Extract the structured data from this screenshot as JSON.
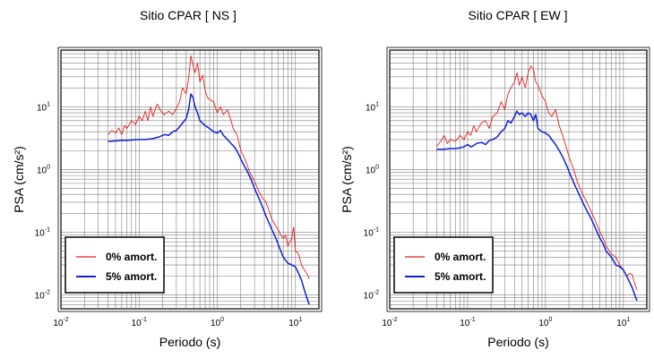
{
  "chart_data": [
    {
      "type": "line",
      "title": "Sitio CPAR [ NS ]",
      "xlabel": "Periodo (s)",
      "ylabel": "PSA (cm/s²)",
      "xscale": "log",
      "yscale": "log",
      "xlim": [
        0.01,
        20
      ],
      "ylim": [
        0.006,
        80
      ],
      "grid": true,
      "legend_position": "bottom-left",
      "xticks": [
        {
          "base": "10",
          "exp": "-2"
        },
        {
          "base": "10",
          "exp": "-1"
        },
        {
          "base": "10",
          "exp": "0"
        },
        {
          "base": "10",
          "exp": "1"
        }
      ],
      "yticks": [
        {
          "base": "10",
          "exp": "-2"
        },
        {
          "base": "10",
          "exp": "-1"
        },
        {
          "base": "10",
          "exp": "0"
        },
        {
          "base": "10",
          "exp": "1"
        }
      ],
      "series": [
        {
          "name": "0% amort.",
          "color": "#e02020",
          "points": [
            [
              0.04,
              3.6
            ],
            [
              0.045,
              4.2
            ],
            [
              0.05,
              3.8
            ],
            [
              0.055,
              4.6
            ],
            [
              0.06,
              3.6
            ],
            [
              0.065,
              5.0
            ],
            [
              0.07,
              4.5
            ],
            [
              0.08,
              6.0
            ],
            [
              0.09,
              5.2
            ],
            [
              0.1,
              7.0
            ],
            [
              0.11,
              6.0
            ],
            [
              0.12,
              8.5
            ],
            [
              0.13,
              6.0
            ],
            [
              0.14,
              10.0
            ],
            [
              0.15,
              7.0
            ],
            [
              0.17,
              11.0
            ],
            [
              0.19,
              8.5
            ],
            [
              0.21,
              7.5
            ],
            [
              0.24,
              8.5
            ],
            [
              0.27,
              7.5
            ],
            [
              0.3,
              9.5
            ],
            [
              0.33,
              12.0
            ],
            [
              0.36,
              20.0
            ],
            [
              0.4,
              16.0
            ],
            [
              0.43,
              28.0
            ],
            [
              0.46,
              65.0
            ],
            [
              0.49,
              45.0
            ],
            [
              0.52,
              35.0
            ],
            [
              0.56,
              50.0
            ],
            [
              0.6,
              25.0
            ],
            [
              0.65,
              32.0
            ],
            [
              0.7,
              18.0
            ],
            [
              0.75,
              14.0
            ],
            [
              0.8,
              13.0
            ],
            [
              0.9,
              12.0
            ],
            [
              1.0,
              8.0
            ],
            [
              1.1,
              10.0
            ],
            [
              1.2,
              7.5
            ],
            [
              1.35,
              9.0
            ],
            [
              1.5,
              6.0
            ],
            [
              1.6,
              4.5
            ],
            [
              1.8,
              3.5
            ],
            [
              2.0,
              2.0
            ],
            [
              2.3,
              1.4
            ],
            [
              2.6,
              0.9
            ],
            [
              3.0,
              0.65
            ],
            [
              3.4,
              0.45
            ],
            [
              3.8,
              0.35
            ],
            [
              4.2,
              0.3
            ],
            [
              4.6,
              0.22
            ],
            [
              5.0,
              0.16
            ],
            [
              5.5,
              0.13
            ],
            [
              6.0,
              0.11
            ],
            [
              6.5,
              0.09
            ],
            [
              7.0,
              0.08
            ],
            [
              7.5,
              0.09
            ],
            [
              8.0,
              0.06
            ],
            [
              8.5,
              0.07
            ],
            [
              9.0,
              0.08
            ],
            [
              9.5,
              0.12
            ],
            [
              10.0,
              0.05
            ],
            [
              11.0,
              0.045
            ],
            [
              12.0,
              0.03
            ],
            [
              13.0,
              0.025
            ],
            [
              14.0,
              0.022
            ],
            [
              15.0,
              0.018
            ]
          ]
        },
        {
          "name": "5% amort.",
          "color": "#1020d0",
          "points": [
            [
              0.04,
              2.8
            ],
            [
              0.05,
              2.85
            ],
            [
              0.06,
              2.9
            ],
            [
              0.07,
              2.9
            ],
            [
              0.08,
              2.95
            ],
            [
              0.1,
              3.0
            ],
            [
              0.12,
              3.0
            ],
            [
              0.15,
              3.1
            ],
            [
              0.18,
              3.3
            ],
            [
              0.21,
              3.6
            ],
            [
              0.24,
              3.5
            ],
            [
              0.27,
              4.0
            ],
            [
              0.3,
              4.2
            ],
            [
              0.33,
              4.8
            ],
            [
              0.36,
              5.5
            ],
            [
              0.4,
              6.5
            ],
            [
              0.43,
              9.0
            ],
            [
              0.46,
              16.0
            ],
            [
              0.49,
              14.0
            ],
            [
              0.52,
              10.0
            ],
            [
              0.56,
              8.0
            ],
            [
              0.6,
              6.0
            ],
            [
              0.7,
              5.0
            ],
            [
              0.8,
              4.5
            ],
            [
              0.9,
              4.0
            ],
            [
              1.0,
              3.8
            ],
            [
              1.1,
              4.2
            ],
            [
              1.2,
              3.5
            ],
            [
              1.35,
              3.0
            ],
            [
              1.5,
              2.6
            ],
            [
              1.7,
              2.2
            ],
            [
              1.9,
              1.7
            ],
            [
              2.1,
              1.3
            ],
            [
              2.4,
              0.95
            ],
            [
              2.7,
              0.7
            ],
            [
              3.0,
              0.5
            ],
            [
              3.4,
              0.35
            ],
            [
              3.8,
              0.25
            ],
            [
              4.2,
              0.18
            ],
            [
              4.6,
              0.14
            ],
            [
              5.0,
              0.11
            ],
            [
              5.5,
              0.085
            ],
            [
              6.0,
              0.065
            ],
            [
              6.5,
              0.05
            ],
            [
              7.0,
              0.04
            ],
            [
              8.0,
              0.032
            ],
            [
              9.0,
              0.03
            ],
            [
              10.0,
              0.028
            ],
            [
              11.0,
              0.022
            ],
            [
              12.0,
              0.017
            ],
            [
              13.0,
              0.012
            ],
            [
              14.0,
              0.009
            ],
            [
              15.0,
              0.007
            ]
          ]
        }
      ]
    },
    {
      "type": "line",
      "title": "Sitio CPAR [ EW ]",
      "xlabel": "Periodo (s)",
      "ylabel": "PSA (cm/s²)",
      "xscale": "log",
      "yscale": "log",
      "xlim": [
        0.01,
        20
      ],
      "ylim": [
        0.006,
        80
      ],
      "grid": true,
      "legend_position": "bottom-left",
      "xticks": [
        {
          "base": "10",
          "exp": "-2"
        },
        {
          "base": "10",
          "exp": "-1"
        },
        {
          "base": "10",
          "exp": "0"
        },
        {
          "base": "10",
          "exp": "1"
        }
      ],
      "yticks": [
        {
          "base": "10",
          "exp": "-2"
        },
        {
          "base": "10",
          "exp": "-1"
        },
        {
          "base": "10",
          "exp": "0"
        },
        {
          "base": "10",
          "exp": "1"
        }
      ],
      "series": [
        {
          "name": "0% amort.",
          "color": "#e02020",
          "points": [
            [
              0.04,
              2.3
            ],
            [
              0.045,
              2.8
            ],
            [
              0.05,
              3.5
            ],
            [
              0.055,
              2.6
            ],
            [
              0.06,
              3.0
            ],
            [
              0.07,
              2.8
            ],
            [
              0.08,
              3.5
            ],
            [
              0.09,
              3.0
            ],
            [
              0.1,
              4.0
            ],
            [
              0.11,
              3.5
            ],
            [
              0.12,
              5.0
            ],
            [
              0.13,
              4.0
            ],
            [
              0.15,
              5.5
            ],
            [
              0.17,
              6.0
            ],
            [
              0.19,
              4.5
            ],
            [
              0.21,
              7.0
            ],
            [
              0.24,
              8.0
            ],
            [
              0.27,
              12.0
            ],
            [
              0.3,
              9.0
            ],
            [
              0.33,
              16.0
            ],
            [
              0.36,
              20.0
            ],
            [
              0.4,
              25.0
            ],
            [
              0.43,
              35.0
            ],
            [
              0.46,
              22.0
            ],
            [
              0.5,
              30.0
            ],
            [
              0.55,
              20.0
            ],
            [
              0.6,
              35.0
            ],
            [
              0.65,
              45.0
            ],
            [
              0.7,
              40.0
            ],
            [
              0.75,
              25.0
            ],
            [
              0.8,
              22.0
            ],
            [
              0.9,
              15.0
            ],
            [
              1.0,
              12.0
            ],
            [
              1.1,
              8.0
            ],
            [
              1.2,
              7.0
            ],
            [
              1.35,
              9.0
            ],
            [
              1.5,
              5.0
            ],
            [
              1.6,
              4.0
            ],
            [
              1.8,
              2.5
            ],
            [
              2.0,
              1.6
            ],
            [
              2.3,
              1.0
            ],
            [
              2.6,
              0.6
            ],
            [
              3.0,
              0.4
            ],
            [
              3.4,
              0.3
            ],
            [
              3.8,
              0.22
            ],
            [
              4.2,
              0.17
            ],
            [
              4.6,
              0.13
            ],
            [
              5.0,
              0.1
            ],
            [
              5.5,
              0.08
            ],
            [
              6.0,
              0.06
            ],
            [
              7.0,
              0.045
            ],
            [
              8.0,
              0.04
            ],
            [
              9.0,
              0.03
            ],
            [
              10.0,
              0.025
            ],
            [
              11.0,
              0.02
            ],
            [
              12.0,
              0.022
            ],
            [
              13.0,
              0.021
            ],
            [
              14.0,
              0.015
            ],
            [
              15.0,
              0.012
            ]
          ]
        },
        {
          "name": "5% amort.",
          "color": "#1020d0",
          "points": [
            [
              0.04,
              2.1
            ],
            [
              0.05,
              2.1
            ],
            [
              0.06,
              2.15
            ],
            [
              0.07,
              2.15
            ],
            [
              0.08,
              2.2
            ],
            [
              0.09,
              2.3
            ],
            [
              0.1,
              2.5
            ],
            [
              0.11,
              2.3
            ],
            [
              0.12,
              2.4
            ],
            [
              0.13,
              2.6
            ],
            [
              0.15,
              2.7
            ],
            [
              0.17,
              2.5
            ],
            [
              0.19,
              2.9
            ],
            [
              0.21,
              3.0
            ],
            [
              0.24,
              3.3
            ],
            [
              0.27,
              4.0
            ],
            [
              0.3,
              4.5
            ],
            [
              0.33,
              6.0
            ],
            [
              0.36,
              5.5
            ],
            [
              0.4,
              7.0
            ],
            [
              0.43,
              8.5
            ],
            [
              0.46,
              7.5
            ],
            [
              0.5,
              8.0
            ],
            [
              0.55,
              7.0
            ],
            [
              0.6,
              8.0
            ],
            [
              0.65,
              7.5
            ],
            [
              0.7,
              6.0
            ],
            [
              0.75,
              7.5
            ],
            [
              0.8,
              4.5
            ],
            [
              0.9,
              4.0
            ],
            [
              1.0,
              3.8
            ],
            [
              1.1,
              3.5
            ],
            [
              1.2,
              3.0
            ],
            [
              1.35,
              2.5
            ],
            [
              1.5,
              2.0
            ],
            [
              1.7,
              1.5
            ],
            [
              1.9,
              1.1
            ],
            [
              2.1,
              0.8
            ],
            [
              2.4,
              0.55
            ],
            [
              2.7,
              0.4
            ],
            [
              3.0,
              0.3
            ],
            [
              3.4,
              0.22
            ],
            [
              3.8,
              0.17
            ],
            [
              4.2,
              0.13
            ],
            [
              4.6,
              0.1
            ],
            [
              5.0,
              0.08
            ],
            [
              5.5,
              0.065
            ],
            [
              6.0,
              0.05
            ],
            [
              7.0,
              0.04
            ],
            [
              8.0,
              0.03
            ],
            [
              9.0,
              0.028
            ],
            [
              10.0,
              0.025
            ],
            [
              11.0,
              0.02
            ],
            [
              12.0,
              0.016
            ],
            [
              13.0,
              0.013
            ],
            [
              14.0,
              0.01
            ],
            [
              15.0,
              0.008
            ]
          ]
        }
      ]
    }
  ]
}
